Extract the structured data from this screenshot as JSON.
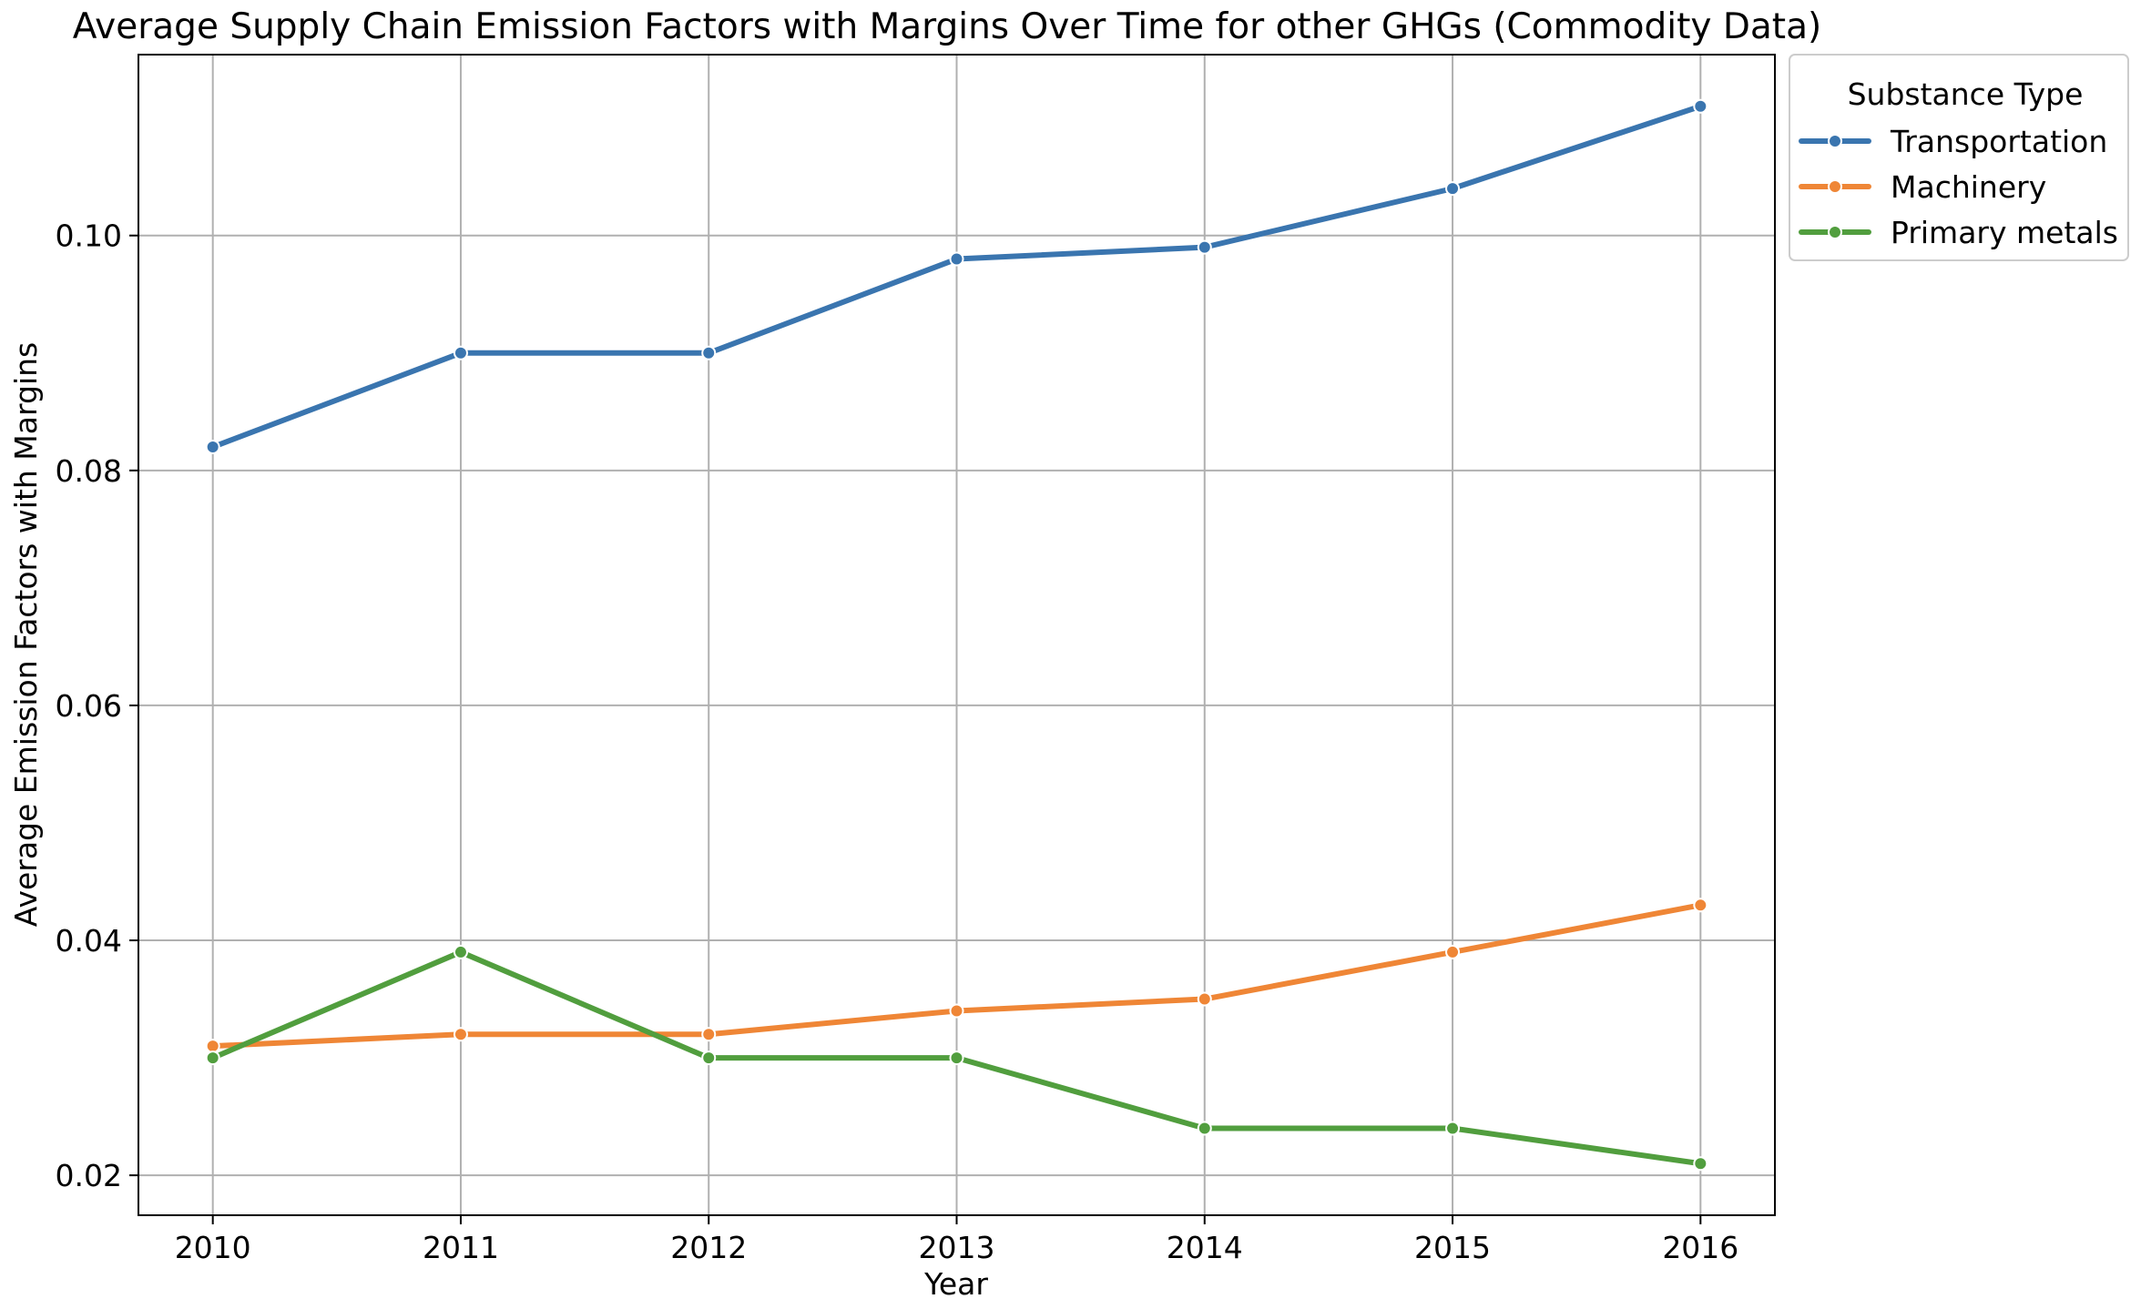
{
  "chart_data": {
    "type": "line",
    "title": "Average Supply Chain Emission Factors with Margins Over Time for other GHGs (Commodity Data)",
    "xlabel": "Year",
    "ylabel": "Average Emission Factors with Margins",
    "x": [
      2010,
      2011,
      2012,
      2013,
      2014,
      2015,
      2016
    ],
    "xlim": [
      2009.7,
      2016.3
    ],
    "ylim": [
      0.0166,
      0.1154
    ],
    "yticks": [
      0.02,
      0.04,
      0.06,
      0.08,
      0.1
    ],
    "ytick_labels": [
      "0.02",
      "0.04",
      "0.06",
      "0.08",
      "0.10"
    ],
    "grid": true,
    "legend": {
      "title": "Substance Type",
      "placement": "outside-top-right"
    },
    "series": [
      {
        "name": "Transportation",
        "color": "#3a75af",
        "values": [
          0.082,
          0.09,
          0.09,
          0.098,
          0.099,
          0.104,
          0.111
        ]
      },
      {
        "name": "Machinery",
        "color": "#ef8636",
        "values": [
          0.031,
          0.032,
          0.032,
          0.034,
          0.035,
          0.039,
          0.043
        ]
      },
      {
        "name": "Primary metals",
        "color": "#519e3e",
        "values": [
          0.03,
          0.039,
          0.03,
          0.03,
          0.024,
          0.024,
          0.021
        ]
      }
    ]
  }
}
